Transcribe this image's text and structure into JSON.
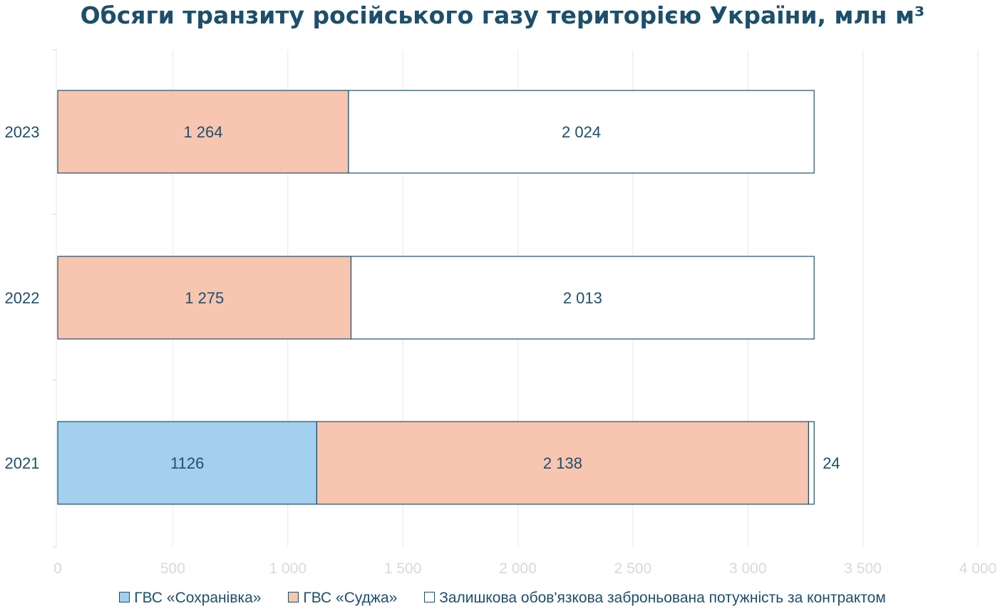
{
  "colors": {
    "title": "#1d4f6b",
    "text": "#1d4f6b",
    "tick": "#d4dadd",
    "grid": "#eceff1",
    "border": "#1d4f6b"
  },
  "chart_data": {
    "type": "bar",
    "orientation": "horizontal",
    "stacked": true,
    "title": "Обсяги транзиту російського газу територією України, млн м³",
    "categories": [
      "2021",
      "2022",
      "2023"
    ],
    "category_order_top_to_bottom": [
      "2023",
      "2022",
      "2021"
    ],
    "series": [
      {
        "name": "ГВС «Сохранівка»",
        "color": "#a2d0ee",
        "values": [
          1126,
          0,
          0
        ],
        "labels": [
          "1126",
          "",
          ""
        ]
      },
      {
        "name": "ГВС «Суджа»",
        "color": "#f7c5b0",
        "values": [
          2138,
          1275,
          1264
        ],
        "labels": [
          "2 138",
          "1 275",
          "1 264"
        ]
      },
      {
        "name": "Залишкова обов'язкова заброньована потужність за контрактом",
        "color": "#ffffff",
        "values": [
          24,
          2013,
          2024
        ],
        "labels": [
          "24",
          "2 013",
          "2 024"
        ]
      }
    ],
    "xlim": [
      0,
      4000
    ],
    "xticks": [
      0,
      500,
      1000,
      1500,
      2000,
      2500,
      3000,
      3500,
      4000
    ],
    "xtick_labels": [
      "0",
      "500",
      "1 000",
      "1 500",
      "2 000",
      "2 500",
      "3 000",
      "3 500",
      "4 000"
    ],
    "grid": true,
    "legend_position": "bottom"
  }
}
